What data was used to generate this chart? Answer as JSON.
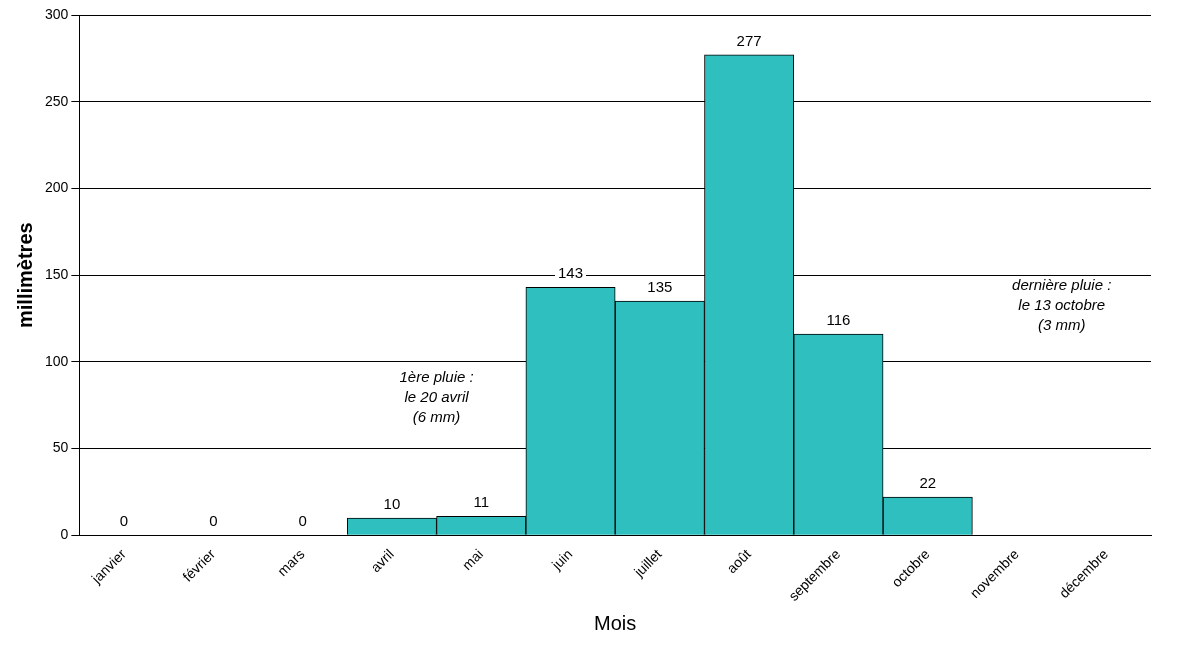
{
  "chart_data": {
    "type": "bar",
    "categories": [
      "janvier",
      "février",
      "mars",
      "avril",
      "mai",
      "juin",
      "juillet",
      "août",
      "septembre",
      "octobre",
      "novembre",
      "décembre"
    ],
    "values": [
      0,
      0,
      0,
      10,
      11,
      143,
      135,
      277,
      116,
      22,
      null,
      null
    ],
    "value_labels": [
      "0",
      "0",
      "0",
      "10",
      "11",
      "143",
      "135",
      "277",
      "116",
      "22",
      null,
      null
    ],
    "color": "#2fbfbf",
    "xlabel": "Mois",
    "ylabel": "millimètres",
    "ylim": [
      0,
      300
    ],
    "yticks": [
      0,
      50,
      100,
      150,
      200,
      250,
      300
    ],
    "grid": "y",
    "annotations": [
      "1ère pluie :\nle 20 avril\n(6 mm)",
      "dernière pluie :\nle 13 octobre\n(3 mm)"
    ]
  }
}
